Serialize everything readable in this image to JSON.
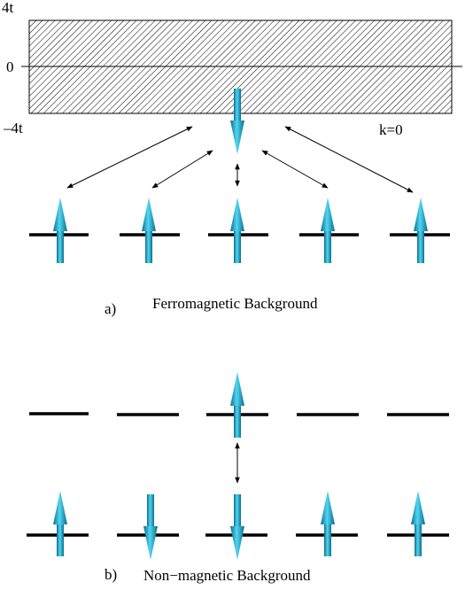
{
  "axis": {
    "top": "4t",
    "zero": "0",
    "bottom": "–4t",
    "k_label": "k=0"
  },
  "panel_a": {
    "letter": "a)",
    "caption": "Ferromagnetic Background"
  },
  "panel_b": {
    "letter": "b)",
    "caption": "Non−magnetic Background"
  }
}
